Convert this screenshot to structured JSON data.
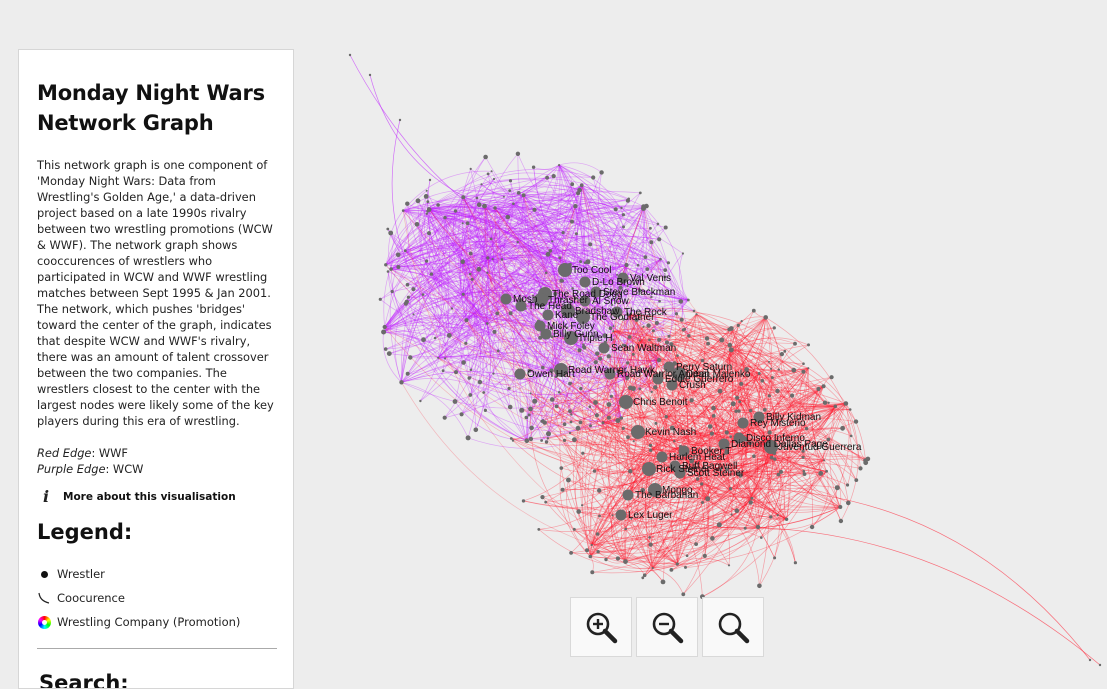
{
  "sidebar": {
    "title_line1": "Monday Night Wars",
    "title_line2": "Network Graph",
    "description": "This network graph is one component of 'Monday Night Wars: Data from Wrestling's Golden Age,' a data-driven project based on a late 1990s rivalry between two wrestling promotions (WCW & WWF). The network graph shows cooccurences of wrestlers who participated in WCW and WWF wrestling matches between Sept 1995 & Jan 2001. The network, which pushes 'bridges' toward the center of the graph, indicates that despite WCW and WWF's rivalry, there was an amount of talent crossover between the two companies. The wrestlers closest to the center with the largest nodes were likely some of the key players during this era of wrestling.",
    "red_edge_label": "Red Edge",
    "red_edge_value": ": WWF",
    "purple_edge_label": "Purple Edge",
    "purple_edge_value": ": WCW",
    "more_info_icon": "info-icon",
    "more_info_label": "More about this visualisation",
    "legend_title": "Legend:",
    "legend_items": [
      {
        "icon": "node-dot-icon",
        "label": "Wrestler"
      },
      {
        "icon": "edge-curve-icon",
        "label": "Coocurence"
      },
      {
        "icon": "color-wheel-icon",
        "label": "Wrestling Company (Promotion)"
      }
    ],
    "search_title": "Search:"
  },
  "zoom": {
    "zoom_in_icon": "zoom-in-icon",
    "zoom_out_icon": "zoom-out-icon",
    "reset_icon": "zoom-reset-icon"
  },
  "colors": {
    "wcw_edge": "#c020ff",
    "wwf_edge": "#ff1a2e",
    "node": "#6b6b6b",
    "background": "#ededed"
  },
  "graph": {
    "node_labels": [
      "Too Cool",
      "Val Venis",
      "D-Lo Brown",
      "The Road Dogg",
      "Steve Blackman",
      "Mosh",
      "Thrasher",
      "Al Snow",
      "The Head",
      "Bradshaw",
      "The Rock",
      "Kane",
      "The Godfather",
      "Mick Foley",
      "Billy Gunn",
      "Triple H",
      "Sean Waltman",
      "Owen Hart",
      "Road Warrior Hawk",
      "Road Warrior Animal",
      "Perry Saturn",
      "Dean Malenko",
      "Eddie Guerrero",
      "Crush",
      "Chris Benoit",
      "Billy Kidman",
      "Rey Misterio",
      "Kevin Nash",
      "Disco Inferno",
      "Diamond Dallas Page",
      "Juventud Guerrera",
      "Booker T",
      "Harlem Heat",
      "Rick Steiner",
      "Buff Bagwell",
      "Scott Steiner",
      "Mongo",
      "The Barbarian",
      "Lex Luger"
    ]
  }
}
